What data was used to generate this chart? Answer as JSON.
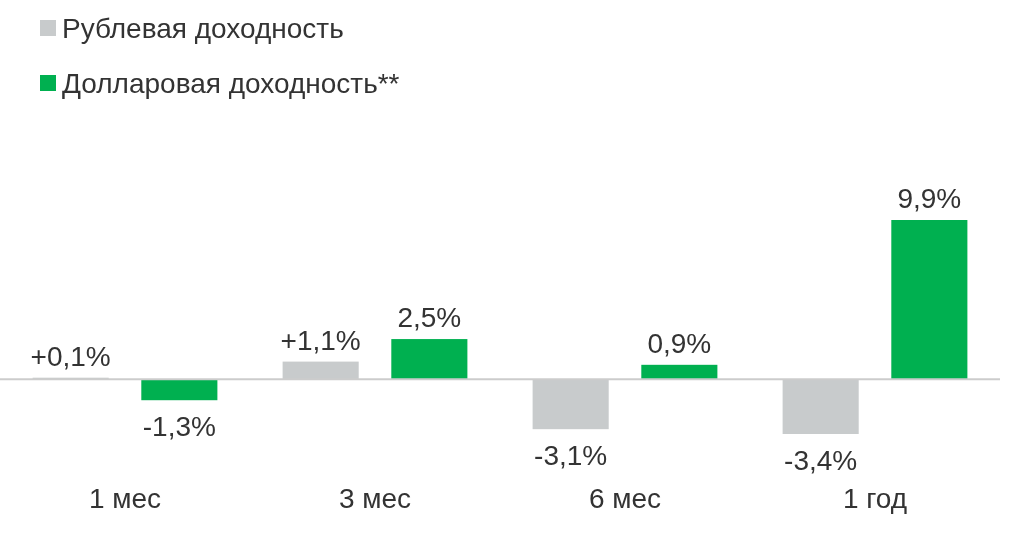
{
  "chart_data": {
    "type": "bar",
    "categories": [
      "1 мес",
      "3 мес",
      "6 мес",
      "1 год"
    ],
    "series": [
      {
        "name": "Рублевая доходность",
        "color": "#c8cbcc",
        "values": [
          0.1,
          1.1,
          -3.1,
          -3.4
        ],
        "value_labels": [
          "+0,1%",
          "+1,1%",
          "-3,1%",
          "-3,4%"
        ]
      },
      {
        "name": "Долларовая доходность**",
        "color": "#00b050",
        "values": [
          -1.3,
          2.5,
          0.9,
          9.9
        ],
        "value_labels": [
          "-1,3%",
          "2,5%",
          "0,9%",
          "9,9%"
        ]
      }
    ],
    "legend": "top left"
  }
}
